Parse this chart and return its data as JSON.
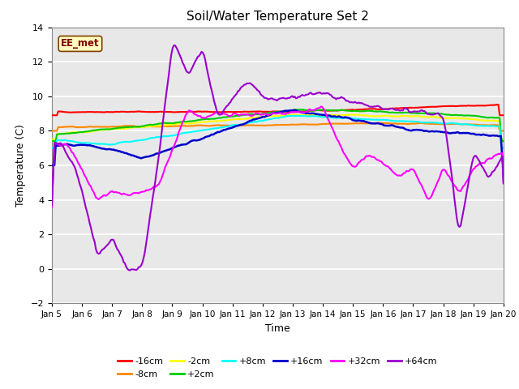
{
  "title": "Soil/Water Temperature Set 2",
  "xlabel": "Time",
  "ylabel": "Temperature (C)",
  "ylim": [
    -2,
    14
  ],
  "yticks": [
    -2,
    0,
    2,
    4,
    6,
    8,
    10,
    12,
    14
  ],
  "xtick_labels": [
    "Jan 5",
    "Jan 6",
    "Jan 7",
    "Jan 8",
    "Jan 9",
    "Jan 10",
    "Jan 11",
    "Jan 12",
    "Jan 13",
    "Jan 14",
    "Jan 15",
    "Jan 16",
    "Jan 17",
    "Jan 18",
    "Jan 19",
    "Jan 20"
  ],
  "annotation_text": "EE_met",
  "annotation_bg": "#ffffc0",
  "annotation_border": "#804000",
  "annotation_text_color": "#800000",
  "fig_bg": "#ffffff",
  "plot_bg": "#e8e8e8",
  "grid_color": "#ffffff",
  "series": [
    {
      "label": "-16cm",
      "color": "#ff0000",
      "lw": 1.5
    },
    {
      "label": "-8cm",
      "color": "#ff8800",
      "lw": 1.5
    },
    {
      "label": "-2cm",
      "color": "#ffff00",
      "lw": 1.5
    },
    {
      "label": "+2cm",
      "color": "#00cc00",
      "lw": 1.5
    },
    {
      "label": "+8cm",
      "color": "#00ffff",
      "lw": 1.5
    },
    {
      "label": "+16cm",
      "color": "#0000cc",
      "lw": 1.8
    },
    {
      "label": "+32cm",
      "color": "#ff00ff",
      "lw": 1.5
    },
    {
      "label": "+64cm",
      "color": "#9900cc",
      "lw": 1.5
    }
  ]
}
